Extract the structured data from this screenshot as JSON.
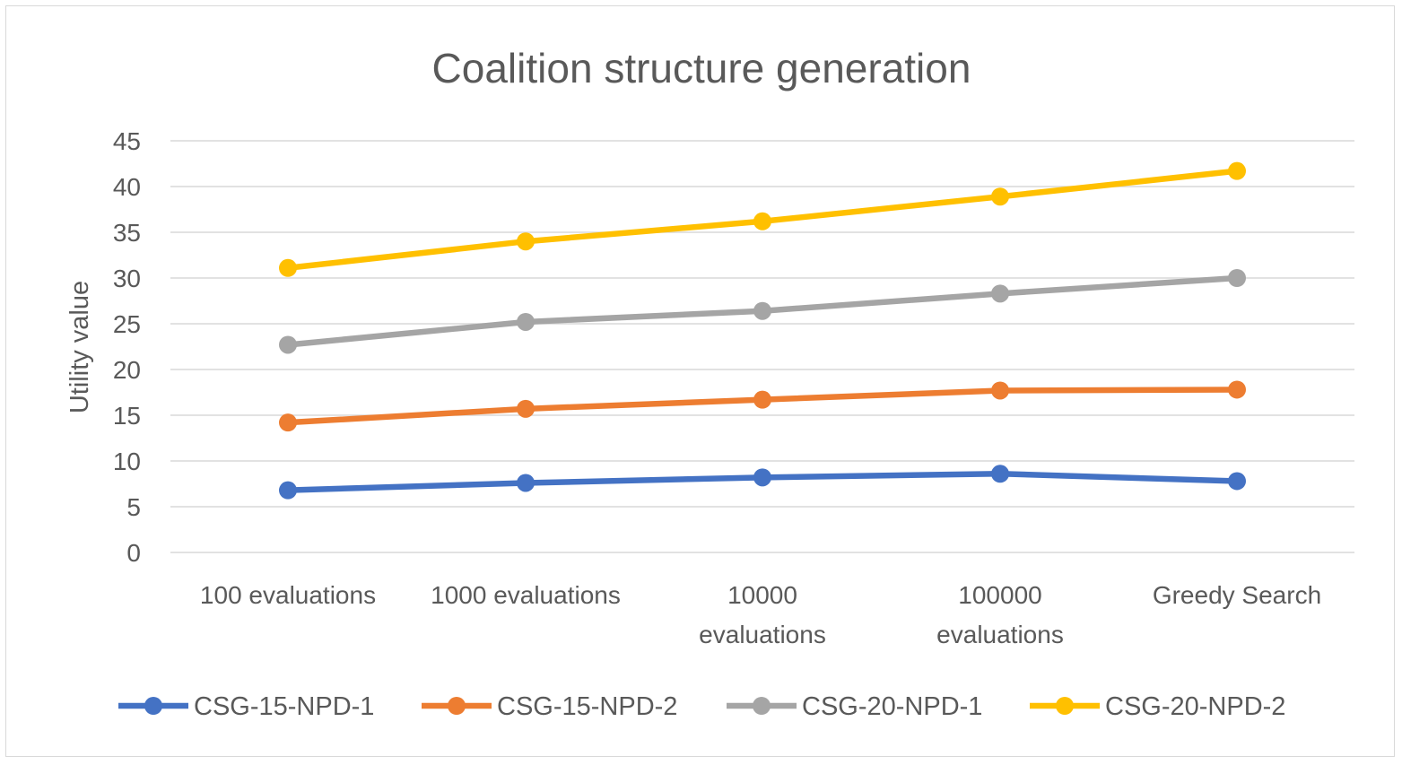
{
  "chart_data": {
    "type": "line",
    "title": "Coalition structure generation",
    "xlabel": "",
    "ylabel": "Utility value",
    "ylim": [
      0,
      45
    ],
    "yticks": [
      0,
      5,
      10,
      15,
      20,
      25,
      30,
      35,
      40,
      45
    ],
    "grid": true,
    "legend_position": "bottom",
    "categories": [
      [
        "100 evaluations"
      ],
      [
        "1000 evaluations"
      ],
      [
        "10000",
        "evaluations"
      ],
      [
        "100000",
        "evaluations"
      ],
      [
        "Greedy Search"
      ]
    ],
    "series": [
      {
        "name": "CSG-15-NPD-1",
        "color": "#4472C4",
        "values": [
          6.8,
          7.6,
          8.2,
          8.6,
          7.8
        ]
      },
      {
        "name": "CSG-15-NPD-2",
        "color": "#ED7D31",
        "values": [
          14.2,
          15.7,
          16.7,
          17.7,
          17.8
        ]
      },
      {
        "name": "CSG-20-NPD-1",
        "color": "#A5A5A5",
        "values": [
          22.7,
          25.2,
          26.4,
          28.3,
          30.0
        ]
      },
      {
        "name": "CSG-20-NPD-2",
        "color": "#FFC000",
        "values": [
          31.1,
          34.0,
          36.2,
          38.9,
          41.7
        ]
      }
    ]
  }
}
